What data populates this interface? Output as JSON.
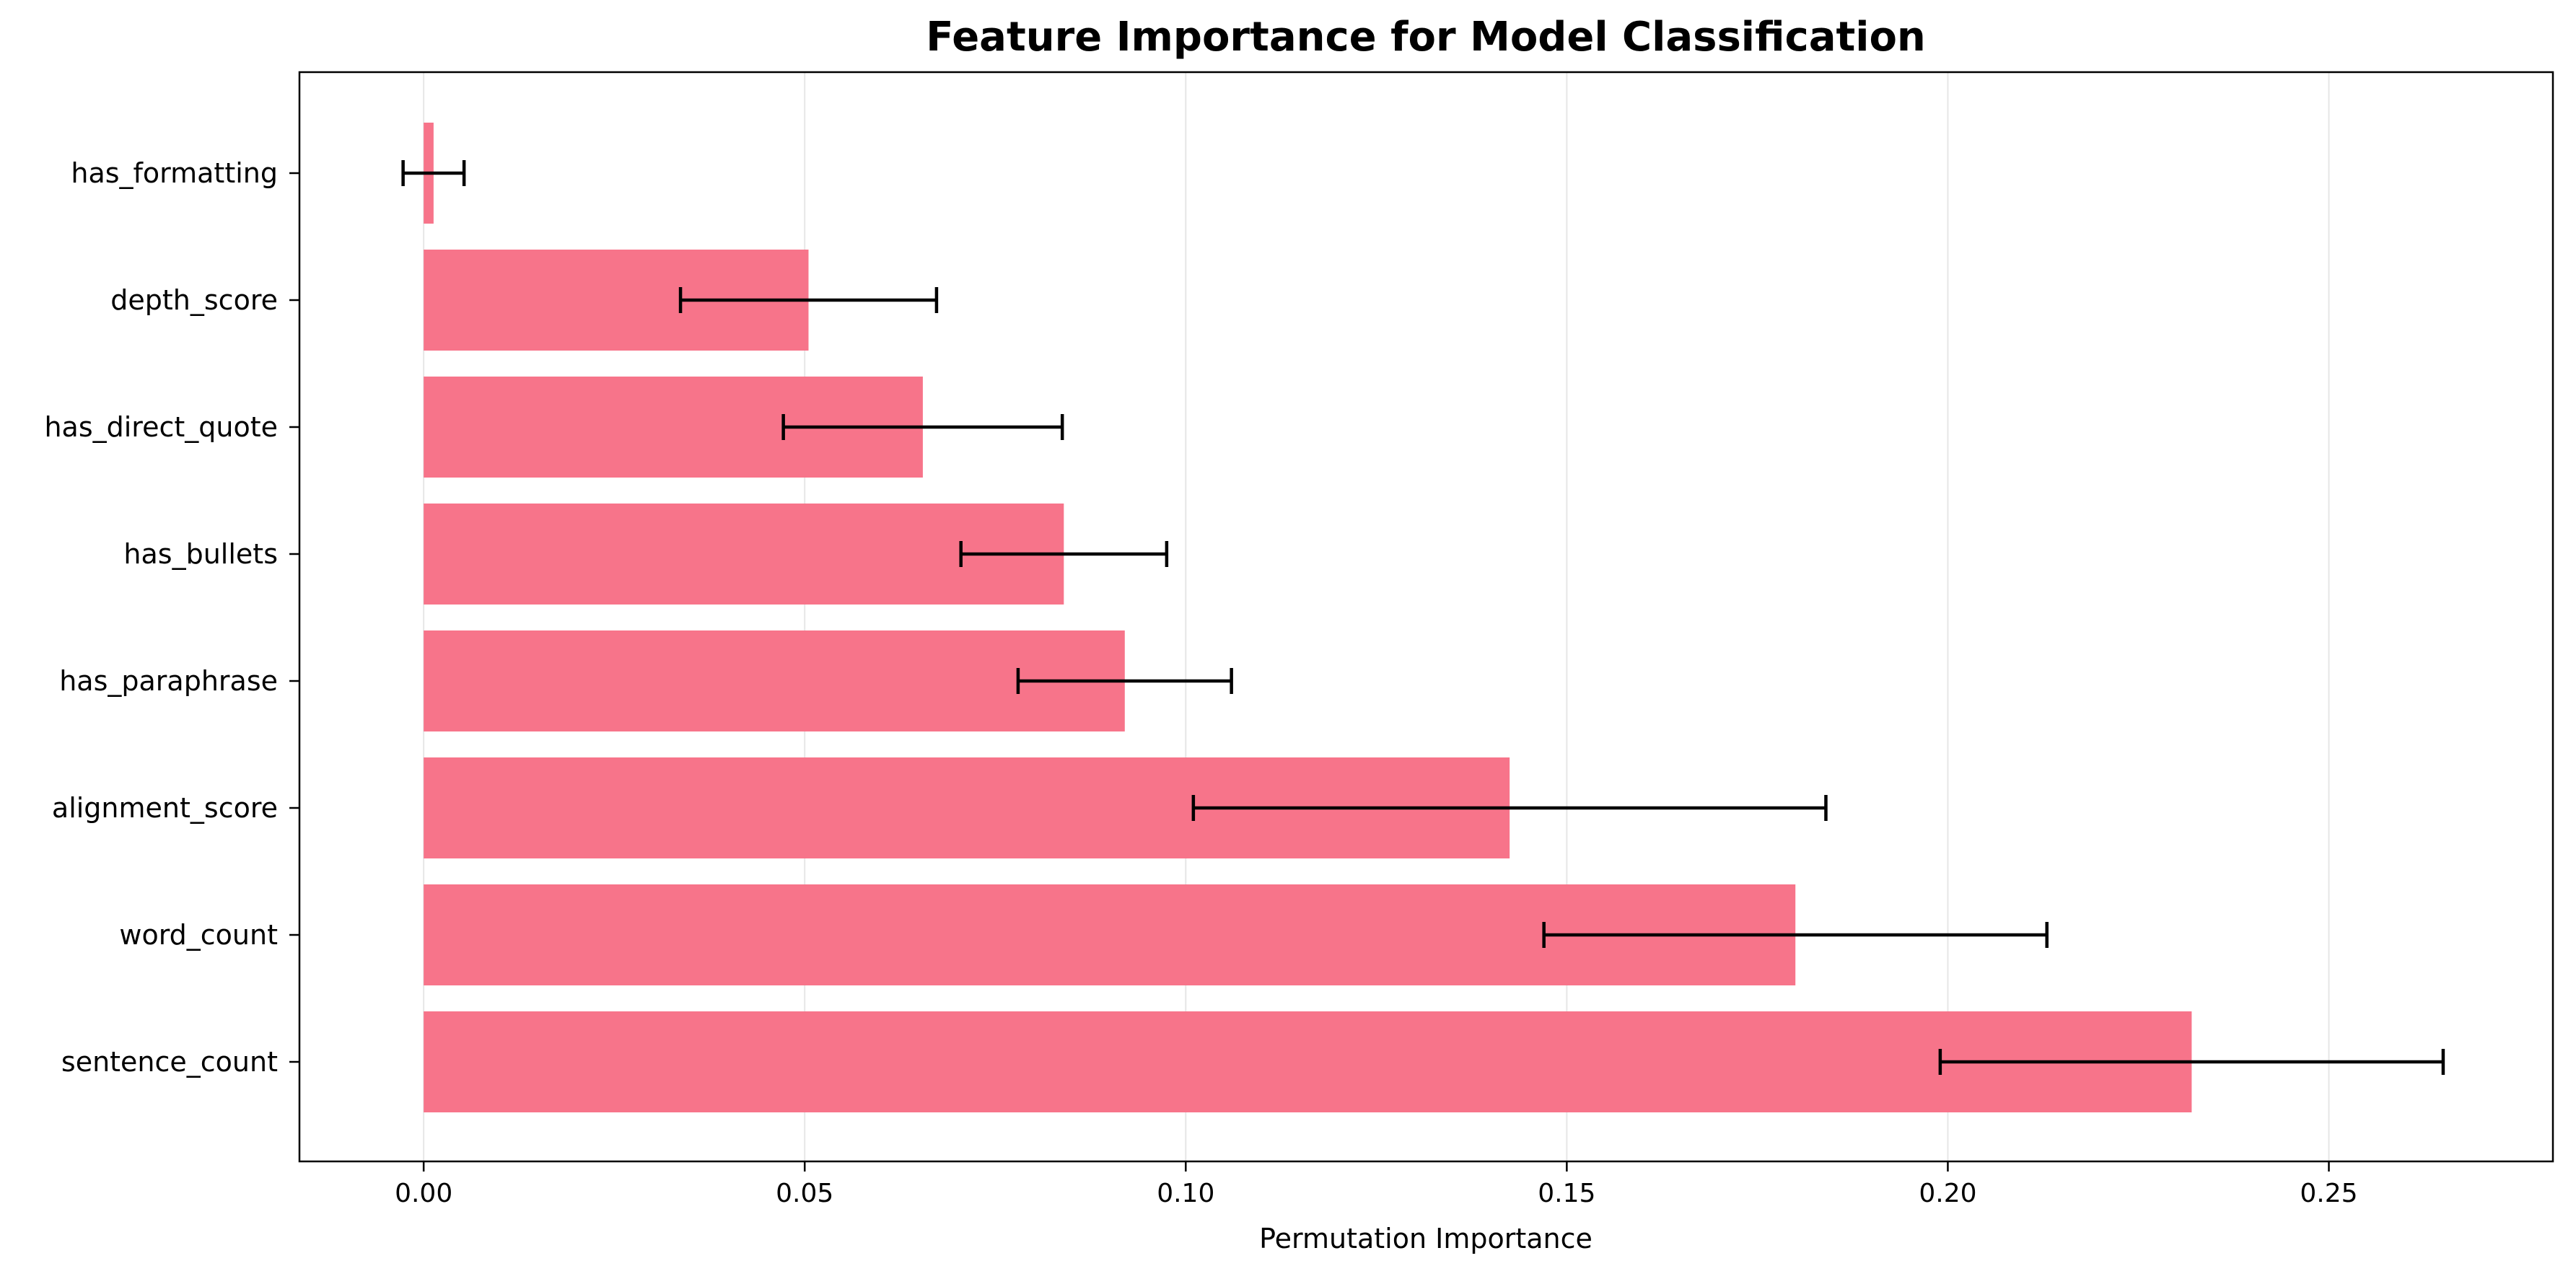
{
  "chart_data": {
    "type": "bar",
    "orientation": "horizontal",
    "title": "Feature Importance for Model Classification",
    "xlabel": "Permutation Importance",
    "ylabel": "",
    "categories": [
      "sentence_count",
      "word_count",
      "alignment_score",
      "has_paraphrase",
      "has_bullets",
      "has_direct_quote",
      "depth_score",
      "has_formatting"
    ],
    "values": [
      0.232,
      0.18,
      0.1425,
      0.092,
      0.084,
      0.0655,
      0.0505,
      0.0013
    ],
    "errors": [
      0.033,
      0.033,
      0.0415,
      0.014,
      0.0135,
      0.0183,
      0.0168,
      0.004
    ],
    "xlim": [
      -0.0163,
      0.2794
    ],
    "xticks": [
      0.0,
      0.05,
      0.1,
      0.15,
      0.2,
      0.25
    ],
    "xtick_labels": [
      "0.00",
      "0.05",
      "0.10",
      "0.15",
      "0.20",
      "0.25"
    ],
    "grid": "x",
    "legend": "none",
    "colors": {
      "bar": "#f7748a",
      "error": "#000000",
      "grid": "#e6e6e6",
      "axes": "#000000",
      "text": "#000000"
    }
  }
}
